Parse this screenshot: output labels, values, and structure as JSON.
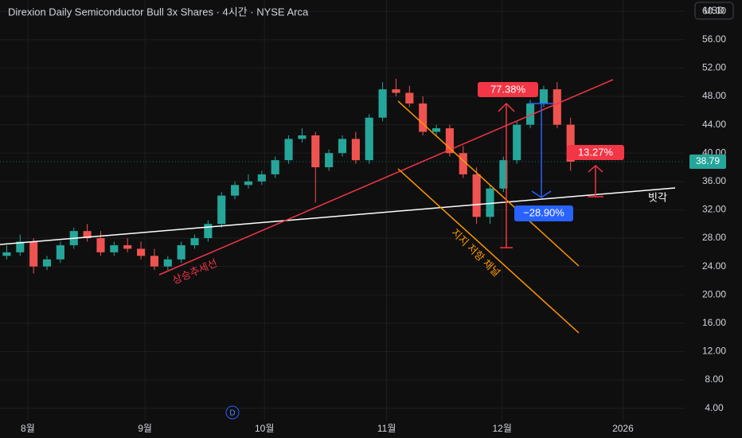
{
  "chart_data": {
    "type": "candlestick",
    "title": "Direxion Daily Semiconductor Bull 3x Shares · 4시간 · NYSE Arca",
    "currency": "USD",
    "event_marker": "D",
    "annotations": {
      "uptrend": "상승추세선",
      "channel": "지지 저항 채널",
      "angle": "빗각",
      "rise": "77.38%",
      "fall": "−28.90%",
      "rebound": "13.27%"
    },
    "up_color": "#26a69a",
    "down_color": "#ef5350",
    "open": [
      25.5,
      26,
      27.5,
      24,
      25,
      27,
      29,
      28,
      26,
      27,
      26.5,
      25.5,
      24,
      25,
      27,
      28,
      30,
      34,
      35.5,
      36,
      37,
      39,
      42,
      42.5,
      38,
      40,
      42,
      39,
      45,
      49,
      48.5,
      47,
      43,
      43.5,
      40,
      37,
      31,
      35,
      39,
      44,
      47,
      49,
      44
    ],
    "high": [
      27,
      28.5,
      28,
      25.5,
      27.5,
      29.5,
      30,
      29,
      27.5,
      28,
      27.5,
      26.5,
      25.5,
      27.5,
      28.5,
      30.5,
      34.5,
      36,
      37,
      37.5,
      39.5,
      42.5,
      43.5,
      43,
      40.5,
      42.5,
      43,
      45.5,
      50,
      50.5,
      49.5,
      48,
      44,
      44,
      41,
      38,
      35.5,
      39.5,
      44.5,
      47.5,
      49.5,
      50,
      45
    ],
    "low": [
      25,
      25.5,
      23,
      23.5,
      24.5,
      26.5,
      27.5,
      25.5,
      25.5,
      26,
      25,
      23.5,
      23.5,
      24.5,
      26.5,
      27.5,
      29.5,
      33.5,
      35,
      35.5,
      36.5,
      38.5,
      41.5,
      33,
      37.5,
      39.5,
      38.5,
      38.5,
      44.5,
      48,
      46.5,
      42.5,
      42.5,
      39.5,
      36.5,
      30,
      30,
      34.5,
      38.5,
      43.5,
      46.5,
      43.5,
      37.5
    ],
    "close": [
      26,
      27.5,
      24,
      25,
      27,
      29,
      28,
      26,
      27,
      26.5,
      25.5,
      24,
      25,
      27,
      28,
      30,
      34,
      35.5,
      36,
      37,
      39,
      42,
      42.5,
      38,
      40,
      42,
      39,
      45,
      49,
      48.5,
      47,
      43,
      43.5,
      40,
      37,
      31,
      35,
      39,
      44,
      47,
      49,
      44,
      38.79
    ],
    "xlim": [
      -0.5,
      50.5
    ],
    "xticks": [
      {
        "value": 1.57,
        "label": "8월"
      },
      {
        "value": 10.3,
        "label": "9월"
      },
      {
        "value": 19.2,
        "label": "10월"
      },
      {
        "value": 28.3,
        "label": "11월"
      },
      {
        "value": 36.9,
        "label": "12월"
      },
      {
        "value": 45.9,
        "label": "2026"
      }
    ],
    "ylim": [
      -0.2,
      61.6
    ],
    "yticks": [
      {
        "value": 4,
        "label": "4.00"
      },
      {
        "value": 8,
        "label": "8.00"
      },
      {
        "value": 12,
        "label": "12.00"
      },
      {
        "value": 16,
        "label": "16.00"
      },
      {
        "value": 20,
        "label": "20.00"
      },
      {
        "value": 24,
        "label": "24.00"
      },
      {
        "value": 28,
        "label": "28.00"
      },
      {
        "value": 32,
        "label": "32.00"
      },
      {
        "value": 36,
        "label": "36.00"
      },
      {
        "value": 40,
        "label": "40.00"
      },
      {
        "value": 44,
        "label": "44.00"
      },
      {
        "value": 48,
        "label": "48.00"
      },
      {
        "value": 52,
        "label": "52.00"
      },
      {
        "value": 56,
        "label": "56.00"
      },
      {
        "value": 60,
        "label": "60.00"
      }
    ],
    "grid": true
  }
}
